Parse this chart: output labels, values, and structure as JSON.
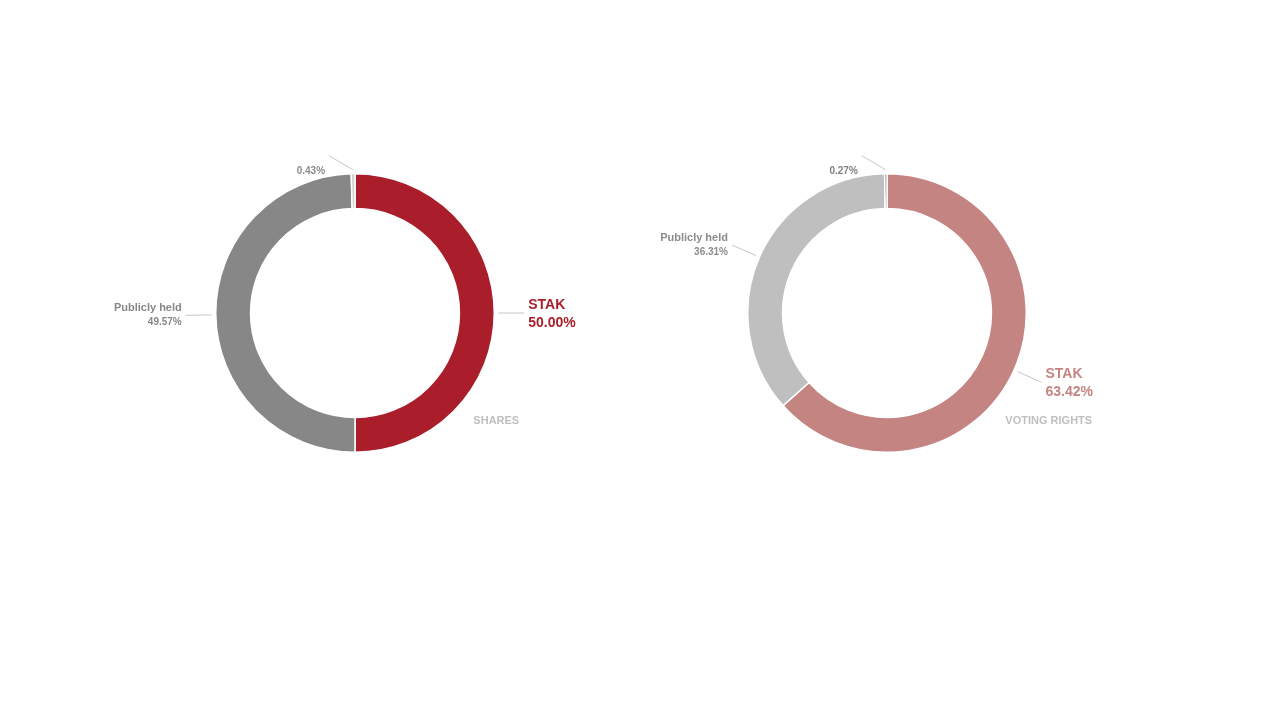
{
  "chart_data": [
    {
      "type": "donut",
      "title": "SHARES",
      "categories": [
        "STAK",
        "Publicly held",
        null
      ],
      "values": [
        50.0,
        49.57,
        0.43
      ],
      "colors": [
        "#a91e2a",
        "#878787",
        "#d0d0d0"
      ],
      "value_labels": [
        "50.00%",
        "49.57%",
        "0.43%"
      ],
      "legend": false
    },
    {
      "type": "donut",
      "title": "VOTING RIGHTS",
      "categories": [
        "STAK",
        "Publicly held",
        null
      ],
      "values": [
        63.42,
        36.31,
        0.27
      ],
      "colors": [
        "#c48482",
        "#bfbfbf",
        "#7f7f7f"
      ],
      "value_labels": [
        "63.42%",
        "36.31%",
        "0.27%"
      ],
      "legend": false
    }
  ]
}
